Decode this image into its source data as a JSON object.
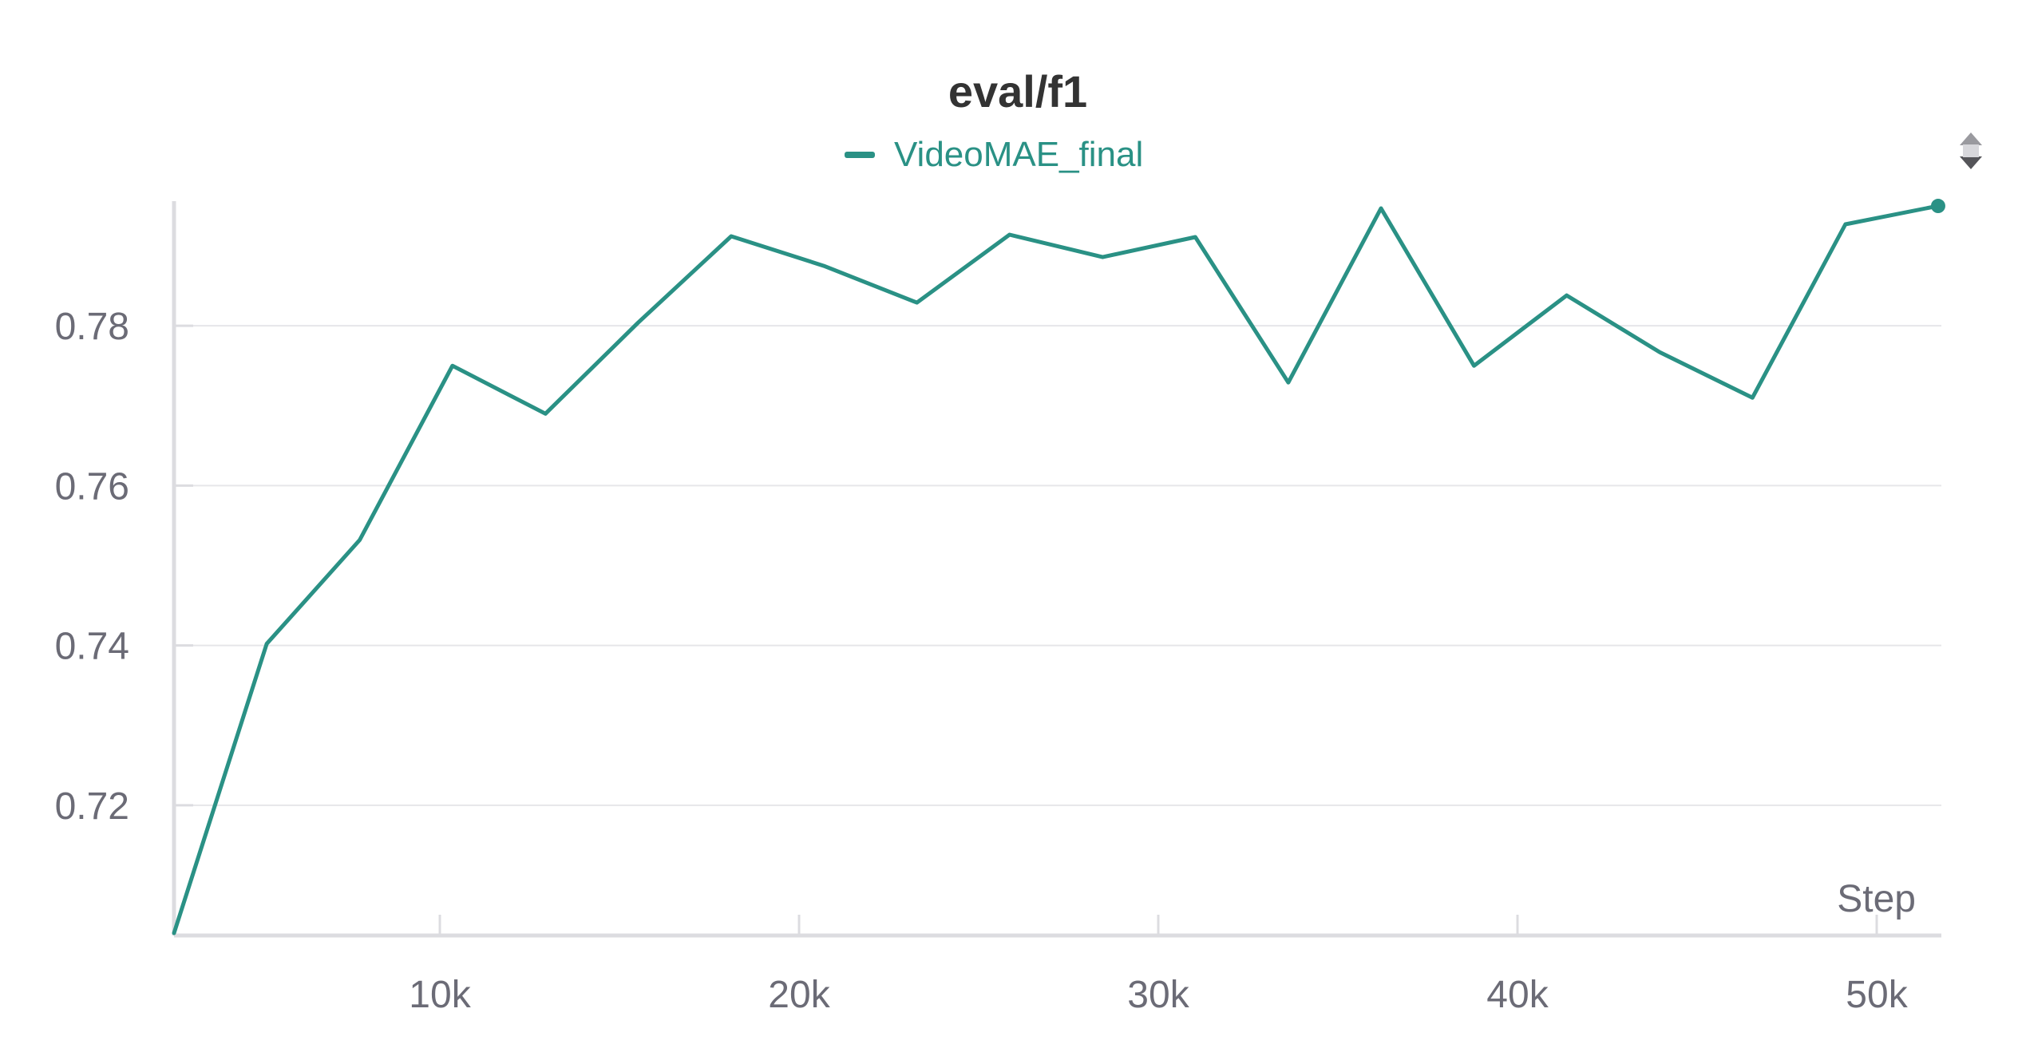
{
  "colors": {
    "series": "#2a9185",
    "grid": "#e6e6e9",
    "axis": "#dcdce0",
    "tick_text": "#6b6b76",
    "title": "#333333"
  },
  "icons": {
    "top_right": "drag-handle-icon"
  },
  "chart_data": {
    "type": "line",
    "title": "eval/f1",
    "xlabel": "Step",
    "ylabel": "",
    "legend": {
      "placement": "top-center",
      "entries": [
        "VideoMAE_final"
      ]
    },
    "grid": true,
    "xlim": [
      2600,
      51800
    ],
    "ylim": [
      0.7037,
      0.7956
    ],
    "x_ticks": [
      {
        "value": 10000,
        "label": "10k"
      },
      {
        "value": 20000,
        "label": "20k"
      },
      {
        "value": 30000,
        "label": "30k"
      },
      {
        "value": 40000,
        "label": "40k"
      },
      {
        "value": 50000,
        "label": "50k"
      }
    ],
    "y_ticks": [
      {
        "value": 0.72,
        "label": "0.72"
      },
      {
        "value": 0.74,
        "label": "0.74"
      },
      {
        "value": 0.76,
        "label": "0.76"
      },
      {
        "value": 0.78,
        "label": "0.78"
      }
    ],
    "series": [
      {
        "name": "VideoMAE_final",
        "x": [
          2600,
          5180,
          7770,
          10350,
          12940,
          15520,
          18110,
          20690,
          23280,
          25860,
          28450,
          31030,
          33620,
          36200,
          38790,
          41370,
          43960,
          46540,
          49130,
          51710
        ],
        "values": [
          0.704,
          0.7402,
          0.7532,
          0.775,
          0.769,
          0.7804,
          0.7912,
          0.7875,
          0.7829,
          0.7914,
          0.7886,
          0.7911,
          0.7729,
          0.7947,
          0.775,
          0.7838,
          0.7767,
          0.771,
          0.7927,
          0.795
        ]
      }
    ]
  }
}
